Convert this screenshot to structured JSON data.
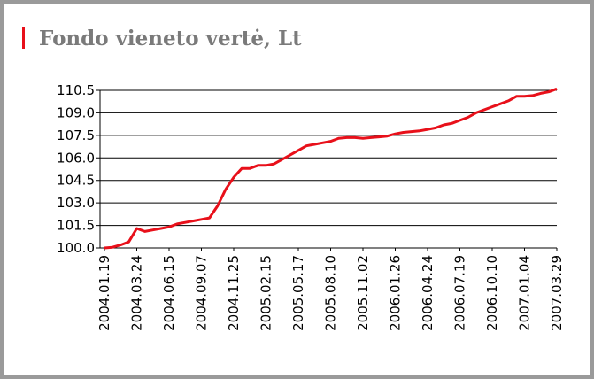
{
  "chart_data": {
    "type": "line",
    "title": "Fondo vieneto vertė, Lt",
    "categories": [
      "2004.01.19",
      null,
      null,
      null,
      "2004.03.24",
      null,
      null,
      null,
      "2004.06.15",
      null,
      null,
      null,
      "2004.09.07",
      null,
      null,
      null,
      "2004.11.25",
      null,
      null,
      null,
      "2005.02.15",
      null,
      null,
      null,
      "2005.05.17",
      null,
      null,
      null,
      "2005.08.10",
      null,
      null,
      null,
      "2005.11.02",
      null,
      null,
      null,
      "2006.01.26",
      null,
      null,
      null,
      "2006.04.24",
      null,
      null,
      null,
      "2006.07.19",
      null,
      null,
      null,
      "2006.10.10",
      null,
      null,
      null,
      "2007.01.04",
      null,
      null,
      null,
      "2007.03.29"
    ],
    "series": [
      {
        "color": "#e8101a",
        "values": [
          100.0,
          100.05,
          100.2,
          100.4,
          101.3,
          101.1,
          101.2,
          101.3,
          101.4,
          101.6,
          101.7,
          101.8,
          101.9,
          102.0,
          102.8,
          103.9,
          104.7,
          105.3,
          105.3,
          105.5,
          105.5,
          105.6,
          105.9,
          106.2,
          106.5,
          106.8,
          106.9,
          107.0,
          107.1,
          107.3,
          107.35,
          107.35,
          107.3,
          107.35,
          107.4,
          107.45,
          107.6,
          107.7,
          107.75,
          107.8,
          107.9,
          108.0,
          108.2,
          108.3,
          108.5,
          108.7,
          109.0,
          109.2,
          109.4,
          109.6,
          109.8,
          110.1,
          110.1,
          110.15,
          110.3,
          110.4,
          110.6
        ]
      }
    ],
    "ylim": [
      100,
      110.5
    ],
    "yticks": [
      {
        "value": 100,
        "label": "100.0"
      },
      {
        "value": 101.5,
        "label": "101.5"
      },
      {
        "value": 103,
        "label": "103.0"
      },
      {
        "value": 104.5,
        "label": "104.5"
      },
      {
        "value": 106,
        "label": "106.0"
      },
      {
        "value": 107.5,
        "label": "107.5"
      },
      {
        "value": 109,
        "label": "109.0"
      },
      {
        "value": 110.5,
        "label": "110.5"
      }
    ],
    "grid": true
  }
}
